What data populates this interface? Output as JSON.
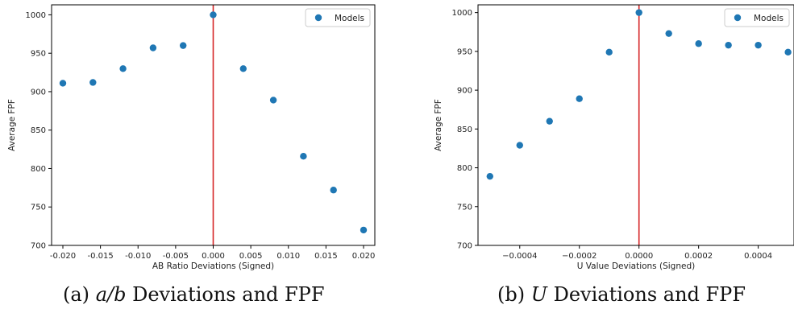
{
  "chart_data": [
    {
      "type": "scatter",
      "title": "",
      "xlabel": "AB Ratio Deviations (Signed)",
      "ylabel": "Average FPF",
      "xlim": [
        -0.0215,
        0.0215
      ],
      "ylim": [
        700,
        1013
      ],
      "xticks": [
        "-0.020",
        "-0.015",
        "-0.010",
        "-0.005",
        "0.000",
        "0.005",
        "0.010",
        "0.015",
        "0.020"
      ],
      "xtick_values": [
        -0.02,
        -0.015,
        -0.01,
        -0.005,
        0,
        0.005,
        0.01,
        0.015,
        0.02
      ],
      "yticks": [
        "700",
        "750",
        "800",
        "850",
        "900",
        "950",
        "1000"
      ],
      "ytick_values": [
        700,
        750,
        800,
        850,
        900,
        950,
        1000
      ],
      "series": [
        {
          "name": "Models",
          "x": [
            -0.02,
            -0.016,
            -0.012,
            -0.008,
            -0.004,
            0,
            0.004,
            0.008,
            0.012,
            0.016,
            0.02
          ],
          "y": [
            911,
            912,
            930,
            957,
            960,
            1000,
            930,
            889,
            816,
            772,
            720
          ]
        }
      ],
      "vline": 0,
      "vline_color": "#d62728",
      "point_color": "#1f77b4",
      "legend_position": "top-right",
      "caption_label": "(a)",
      "caption_var": "a/b",
      "caption_text": "Deviations and FPF"
    },
    {
      "type": "scatter",
      "title": "",
      "xlabel": "U Value Deviations (Signed)",
      "ylabel": "Average FPF",
      "xlim": [
        -0.00054,
        0.00052
      ],
      "ylim": [
        700,
        1010
      ],
      "xticks": [
        "−0.0004",
        "−0.0002",
        "0.0000",
        "0.0002",
        "0.0004"
      ],
      "xtick_values": [
        -0.0004,
        -0.0002,
        0,
        0.0002,
        0.0004
      ],
      "yticks": [
        "700",
        "750",
        "800",
        "850",
        "900",
        "950",
        "1000"
      ],
      "ytick_values": [
        700,
        750,
        800,
        850,
        900,
        950,
        1000
      ],
      "series": [
        {
          "name": "Models",
          "x": [
            -0.0005,
            -0.0004,
            -0.0003,
            -0.0002,
            -0.0001,
            0,
            0.0001,
            0.0002,
            0.0003,
            0.0004,
            0.0005
          ],
          "y": [
            789,
            829,
            860,
            889,
            949,
            1000,
            973,
            960,
            958,
            958,
            949
          ]
        }
      ],
      "vline": 0,
      "vline_color": "#d62728",
      "point_color": "#1f77b4",
      "legend_position": "top-right",
      "caption_label": "(b)",
      "caption_var": "U",
      "caption_text": "Deviations and FPF"
    }
  ]
}
